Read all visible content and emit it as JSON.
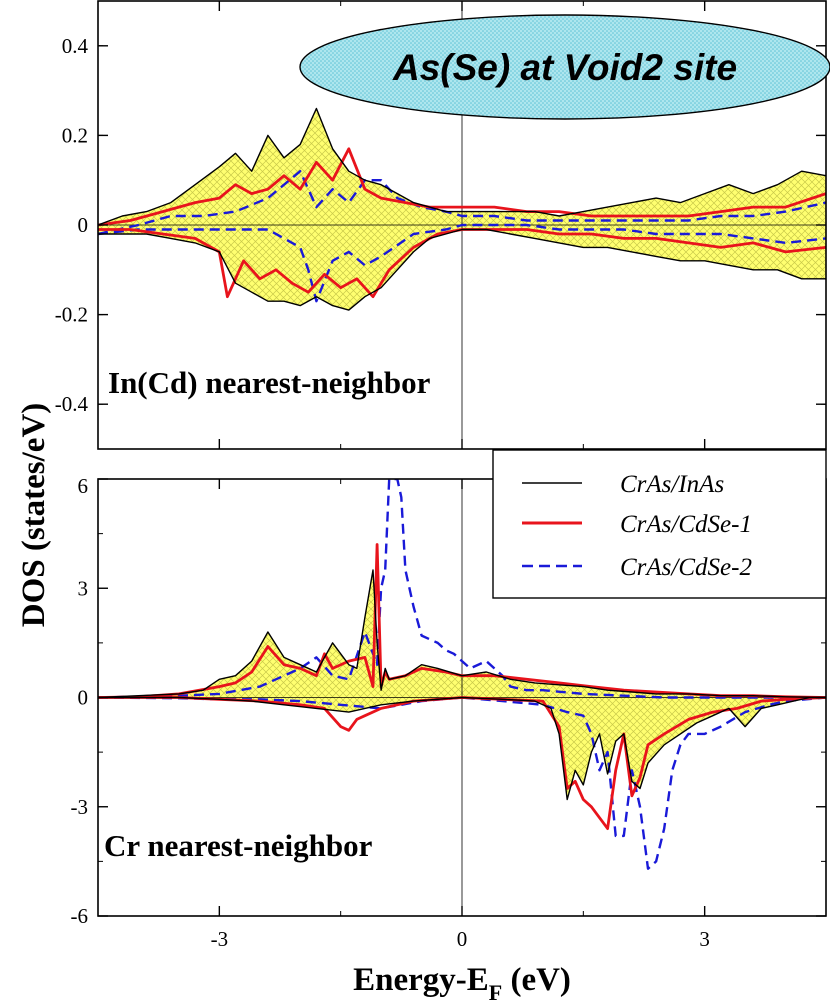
{
  "chart_data": {
    "type": "line",
    "title": "As(Se) at Void2 site",
    "xlabel": "Energy-E",
    "xlabel_sub": "F",
    "xlabel_unit": " (eV)",
    "ylabel": "DOS (states/eV)",
    "xlim": [
      -4.5,
      4.5
    ],
    "x_ticks": [
      -3,
      0,
      3
    ],
    "x_tick_labels": [
      "-3",
      "0",
      "3"
    ],
    "colors": {
      "CrAs/InAs": "#000000",
      "CrAs/CdSe-1": "#e8141c",
      "CrAs/CdSe-2": "#1a1ad8",
      "fill": "#ffff66"
    },
    "legend": {
      "position": "top-right of lower panel",
      "entries": [
        "CrAs/InAs",
        "CrAs/CdSe-1",
        "CrAs/CdSe-2"
      ]
    },
    "panels": [
      {
        "label": "In(Cd) nearest-neighbor",
        "ylim": [
          -0.5,
          0.5
        ],
        "y_ticks": [
          -0.4,
          -0.2,
          0,
          0.2,
          0.4
        ],
        "y_tick_labels": [
          "-0.4",
          "-0.2",
          "0",
          "0.2",
          "0.4"
        ],
        "series": [
          {
            "name": "CrAs/InAs",
            "spin": "up",
            "x": [
              -4.5,
              -4.2,
              -3.9,
              -3.6,
              -3.3,
              -3.0,
              -2.8,
              -2.6,
              -2.4,
              -2.2,
              -2.0,
              -1.8,
              -1.6,
              -1.4,
              -1.2,
              -1.0,
              -0.8,
              -0.6,
              -0.4,
              -0.2,
              0.0,
              0.3,
              0.6,
              0.9,
              1.2,
              1.5,
              1.8,
              2.1,
              2.4,
              2.7,
              3.0,
              3.3,
              3.6,
              3.9,
              4.2,
              4.5
            ],
            "y": [
              0.0,
              0.02,
              0.03,
              0.05,
              0.09,
              0.13,
              0.16,
              0.12,
              0.2,
              0.15,
              0.18,
              0.26,
              0.17,
              0.12,
              0.1,
              0.09,
              0.07,
              0.05,
              0.04,
              0.03,
              0.03,
              0.03,
              0.03,
              0.03,
              0.02,
              0.03,
              0.04,
              0.05,
              0.06,
              0.05,
              0.07,
              0.09,
              0.07,
              0.09,
              0.12,
              0.11
            ]
          },
          {
            "name": "CrAs/InAs",
            "spin": "down",
            "x": [
              -4.5,
              -4.2,
              -3.9,
              -3.6,
              -3.3,
              -3.0,
              -2.8,
              -2.6,
              -2.4,
              -2.2,
              -2.0,
              -1.8,
              -1.6,
              -1.4,
              -1.2,
              -1.0,
              -0.8,
              -0.6,
              -0.4,
              -0.2,
              0.0,
              0.3,
              0.6,
              0.9,
              1.2,
              1.5,
              1.8,
              2.1,
              2.4,
              2.7,
              3.0,
              3.3,
              3.6,
              3.9,
              4.2,
              4.5
            ],
            "y": [
              -0.02,
              -0.02,
              -0.02,
              -0.03,
              -0.04,
              -0.06,
              -0.13,
              -0.15,
              -0.17,
              -0.17,
              -0.18,
              -0.16,
              -0.18,
              -0.19,
              -0.16,
              -0.14,
              -0.1,
              -0.06,
              -0.03,
              -0.02,
              -0.01,
              -0.01,
              -0.02,
              -0.03,
              -0.04,
              -0.05,
              -0.05,
              -0.06,
              -0.07,
              -0.08,
              -0.08,
              -0.09,
              -0.1,
              -0.1,
              -0.12,
              -0.12
            ]
          },
          {
            "name": "CrAs/CdSe-1",
            "spin": "up",
            "x": [
              -4.5,
              -4.1,
              -3.7,
              -3.3,
              -3.0,
              -2.8,
              -2.6,
              -2.4,
              -2.2,
              -2.0,
              -1.8,
              -1.6,
              -1.4,
              -1.2,
              -1.0,
              -0.7,
              -0.4,
              0.0,
              0.4,
              0.8,
              1.2,
              1.6,
              2.0,
              2.4,
              2.8,
              3.2,
              3.6,
              4.0,
              4.5
            ],
            "y": [
              0.0,
              0.01,
              0.03,
              0.05,
              0.06,
              0.09,
              0.07,
              0.08,
              0.11,
              0.08,
              0.14,
              0.1,
              0.17,
              0.08,
              0.06,
              0.05,
              0.04,
              0.04,
              0.04,
              0.03,
              0.03,
              0.02,
              0.02,
              0.02,
              0.02,
              0.03,
              0.04,
              0.04,
              0.07
            ]
          },
          {
            "name": "CrAs/CdSe-1",
            "spin": "down",
            "x": [
              -4.5,
              -4.1,
              -3.7,
              -3.3,
              -3.0,
              -2.9,
              -2.7,
              -2.5,
              -2.3,
              -2.1,
              -1.9,
              -1.7,
              -1.5,
              -1.3,
              -1.1,
              -0.9,
              -0.6,
              -0.3,
              0.0,
              0.4,
              0.8,
              1.2,
              1.6,
              2.0,
              2.4,
              2.8,
              3.2,
              3.6,
              4.0,
              4.5
            ],
            "y": [
              -0.01,
              -0.01,
              -0.02,
              -0.03,
              -0.06,
              -0.16,
              -0.08,
              -0.12,
              -0.1,
              -0.13,
              -0.15,
              -0.11,
              -0.14,
              -0.12,
              -0.16,
              -0.1,
              -0.05,
              -0.02,
              -0.01,
              -0.01,
              -0.01,
              -0.02,
              -0.02,
              -0.03,
              -0.03,
              -0.04,
              -0.05,
              -0.04,
              -0.06,
              -0.05
            ]
          },
          {
            "name": "CrAs/CdSe-2",
            "spin": "up",
            "x": [
              -4.5,
              -4.0,
              -3.6,
              -3.2,
              -2.8,
              -2.4,
              -2.0,
              -1.8,
              -1.6,
              -1.4,
              -1.2,
              -1.0,
              -0.8,
              -0.5,
              -0.2,
              0.0,
              0.4,
              0.8,
              1.2,
              1.6,
              2.0,
              2.4,
              2.8,
              3.2,
              3.6,
              4.0,
              4.5
            ],
            "y": [
              -0.02,
              0.0,
              0.02,
              0.02,
              0.03,
              0.06,
              0.12,
              0.04,
              0.08,
              0.05,
              0.1,
              0.1,
              0.06,
              0.04,
              0.03,
              0.02,
              0.02,
              0.01,
              0.01,
              0.01,
              0.01,
              0.01,
              0.01,
              0.02,
              0.02,
              0.03,
              0.05
            ]
          },
          {
            "name": "CrAs/CdSe-2",
            "spin": "down",
            "x": [
              -4.5,
              -4.0,
              -3.6,
              -3.2,
              -2.8,
              -2.4,
              -2.0,
              -1.9,
              -1.8,
              -1.6,
              -1.4,
              -1.2,
              -1.0,
              -0.6,
              -0.2,
              0.0,
              0.4,
              0.8,
              1.2,
              1.6,
              2.0,
              2.4,
              2.8,
              3.2,
              3.6,
              4.0,
              4.5
            ],
            "y": [
              -0.02,
              -0.01,
              -0.01,
              -0.01,
              -0.01,
              -0.01,
              -0.05,
              -0.1,
              -0.17,
              -0.08,
              -0.06,
              -0.09,
              -0.07,
              -0.02,
              -0.01,
              0.0,
              0.0,
              0.0,
              -0.01,
              -0.01,
              -0.01,
              -0.02,
              -0.02,
              -0.02,
              -0.03,
              -0.04,
              -0.03
            ]
          }
        ]
      },
      {
        "label": "Cr nearest-neighbor",
        "ylim": [
          -6,
          6
        ],
        "y_ticks": [
          -6,
          -3,
          0,
          3,
          6
        ],
        "y_tick_labels": [
          "-6",
          "-3",
          "0",
          "3",
          "6"
        ],
        "series": [
          {
            "name": "CrAs/InAs",
            "spin": "up",
            "x": [
              -4.5,
              -4.0,
              -3.5,
              -3.2,
              -3.0,
              -2.8,
              -2.6,
              -2.4,
              -2.2,
              -2.0,
              -1.8,
              -1.6,
              -1.4,
              -1.3,
              -1.2,
              -1.1,
              -1.05,
              -1.0,
              -0.95,
              -0.9,
              -0.7,
              -0.5,
              -0.3,
              0.0,
              0.3,
              0.6,
              0.9,
              1.2,
              1.5,
              1.8,
              2.1,
              2.4,
              2.8,
              3.2,
              3.6,
              4.0,
              4.5
            ],
            "y": [
              0.0,
              0.05,
              0.1,
              0.2,
              0.5,
              0.6,
              1.0,
              1.8,
              1.1,
              0.9,
              0.7,
              1.5,
              0.9,
              0.8,
              2.2,
              3.5,
              1.5,
              0.2,
              0.8,
              0.5,
              0.6,
              0.9,
              0.8,
              0.6,
              0.7,
              0.5,
              0.4,
              0.35,
              0.3,
              0.2,
              0.15,
              0.1,
              0.1,
              0.05,
              0.05,
              0.02,
              0.0
            ]
          },
          {
            "name": "CrAs/InAs",
            "spin": "down",
            "x": [
              -4.5,
              -4.0,
              -3.5,
              -3.0,
              -2.6,
              -2.2,
              -1.8,
              -1.4,
              -1.0,
              -0.6,
              0.0,
              0.5,
              0.9,
              1.1,
              1.2,
              1.3,
              1.4,
              1.5,
              1.6,
              1.7,
              1.8,
              1.9,
              2.0,
              2.1,
              2.2,
              2.3,
              2.5,
              2.7,
              2.9,
              3.1,
              3.3,
              3.5,
              3.7,
              3.9,
              4.1,
              4.3,
              4.5
            ],
            "y": [
              0.0,
              0.0,
              0.0,
              -0.05,
              -0.1,
              -0.2,
              -0.3,
              -0.4,
              -0.2,
              -0.1,
              0.0,
              -0.05,
              -0.1,
              -0.3,
              -1.0,
              -2.8,
              -2.0,
              -2.4,
              -1.5,
              -1.0,
              -2.1,
              -1.2,
              -1.0,
              -2.3,
              -2.5,
              -1.8,
              -1.3,
              -1.0,
              -0.7,
              -0.5,
              -0.3,
              -0.8,
              -0.3,
              -0.2,
              -0.1,
              0.0,
              0.0
            ]
          },
          {
            "name": "CrAs/CdSe-1",
            "spin": "up",
            "x": [
              -4.5,
              -4.0,
              -3.5,
              -3.0,
              -2.8,
              -2.6,
              -2.4,
              -2.2,
              -2.0,
              -1.8,
              -1.7,
              -1.6,
              -1.4,
              -1.2,
              -1.1,
              -1.05,
              -1.0,
              -0.95,
              -0.9,
              -0.7,
              -0.5,
              -0.2,
              0.0,
              0.4,
              0.8,
              1.2,
              1.6,
              2.0,
              2.4,
              2.8,
              3.2,
              3.6,
              4.0,
              4.5
            ],
            "y": [
              0.0,
              0.02,
              0.1,
              0.3,
              0.4,
              0.7,
              1.4,
              0.9,
              0.8,
              0.6,
              1.2,
              0.8,
              1.0,
              1.1,
              0.3,
              4.2,
              0.3,
              0.7,
              0.5,
              0.6,
              0.8,
              0.7,
              0.6,
              0.6,
              0.5,
              0.4,
              0.3,
              0.2,
              0.15,
              0.1,
              0.05,
              0.05,
              0.02,
              0.0
            ]
          },
          {
            "name": "CrAs/CdSe-1",
            "spin": "down",
            "x": [
              -4.5,
              -4.0,
              -3.5,
              -3.0,
              -2.5,
              -2.0,
              -1.7,
              -1.5,
              -1.4,
              -1.3,
              -1.2,
              -1.0,
              -0.6,
              0.0,
              0.5,
              1.0,
              1.2,
              1.3,
              1.4,
              1.5,
              1.6,
              1.7,
              1.8,
              1.9,
              2.0,
              2.1,
              2.2,
              2.3,
              2.5,
              2.8,
              3.1,
              3.4,
              3.7,
              4.0,
              4.5
            ],
            "y": [
              0.0,
              0.0,
              0.0,
              -0.05,
              -0.1,
              -0.2,
              -0.3,
              -0.8,
              -0.9,
              -0.6,
              -0.5,
              -0.3,
              -0.1,
              0.0,
              -0.05,
              -0.1,
              -0.8,
              -2.5,
              -2.3,
              -2.8,
              -3.0,
              -3.3,
              -3.6,
              -2.0,
              -1.0,
              -2.7,
              -2.2,
              -1.3,
              -1.0,
              -0.6,
              -0.4,
              -0.3,
              -0.1,
              -0.05,
              0.0
            ]
          },
          {
            "name": "CrAs/CdSe-2",
            "spin": "up",
            "x": [
              -4.5,
              -3.5,
              -3.0,
              -2.5,
              -2.0,
              -1.8,
              -1.6,
              -1.4,
              -1.2,
              -1.05,
              -1.0,
              -0.95,
              -0.9,
              -0.8,
              -0.75,
              -0.7,
              -0.6,
              -0.5,
              -0.4,
              -0.3,
              -0.2,
              -0.1,
              0.0,
              0.1,
              0.3,
              0.5,
              0.6,
              0.8,
              1.0,
              1.5,
              2.0,
              2.5,
              3.0,
              4.5
            ],
            "y": [
              0.0,
              0.05,
              0.1,
              0.3,
              0.8,
              1.1,
              0.6,
              0.5,
              1.8,
              0.9,
              3.0,
              3.5,
              6.0,
              6.0,
              5.5,
              3.5,
              2.5,
              1.7,
              1.6,
              1.5,
              1.3,
              1.2,
              1.0,
              0.8,
              1.0,
              0.6,
              0.3,
              0.2,
              0.2,
              0.1,
              0.05,
              0.0,
              0.0,
              0.0
            ]
          },
          {
            "name": "CrAs/CdSe-2",
            "spin": "down",
            "x": [
              -4.5,
              -3.5,
              -3.0,
              -2.5,
              -2.0,
              -1.5,
              -1.0,
              -0.5,
              0.0,
              0.5,
              1.0,
              1.3,
              1.5,
              1.6,
              1.7,
              1.8,
              1.9,
              2.0,
              2.1,
              2.2,
              2.3,
              2.4,
              2.5,
              2.6,
              2.7,
              2.8,
              3.0,
              3.2,
              3.5,
              3.8,
              4.0,
              4.5
            ],
            "y": [
              0.0,
              -0.02,
              -0.05,
              -0.05,
              -0.1,
              -0.2,
              -0.3,
              -0.1,
              0.0,
              -0.1,
              -0.2,
              -0.4,
              -0.5,
              -1.0,
              -2.0,
              -1.5,
              -3.8,
              -3.8,
              -2.0,
              -3.0,
              -4.7,
              -4.5,
              -3.6,
              -2.0,
              -1.3,
              -1.0,
              -1.0,
              -0.8,
              -0.4,
              -0.2,
              -0.1,
              0.0
            ]
          }
        ]
      }
    ]
  }
}
